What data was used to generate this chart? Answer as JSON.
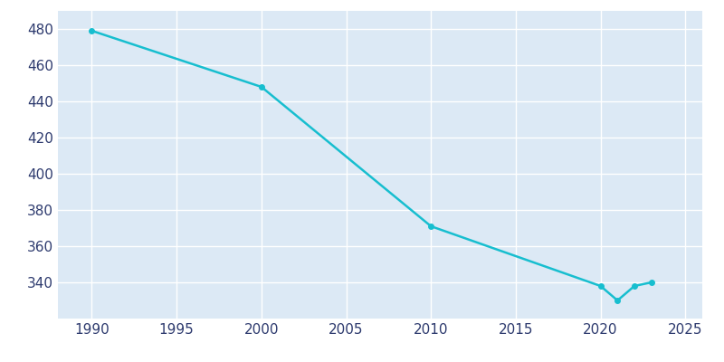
{
  "years": [
    1990,
    2000,
    2010,
    2020,
    2021,
    2022,
    2023
  ],
  "population": [
    479,
    448,
    371,
    338,
    330,
    338,
    340
  ],
  "line_color": "#17becf",
  "marker": "o",
  "marker_size": 4,
  "line_width": 1.8,
  "bg_color": "#ffffff",
  "plot_bg_color": "#dce9f5",
  "grid_color": "#ffffff",
  "xlabel": "",
  "ylabel": "",
  "xlim": [
    1988,
    2026
  ],
  "ylim": [
    320,
    490
  ],
  "xticks": [
    1990,
    1995,
    2000,
    2005,
    2010,
    2015,
    2020,
    2025
  ],
  "yticks": [
    340,
    360,
    380,
    400,
    420,
    440,
    460,
    480
  ],
  "tick_label_color": "#2d3a6e",
  "tick_fontsize": 11
}
